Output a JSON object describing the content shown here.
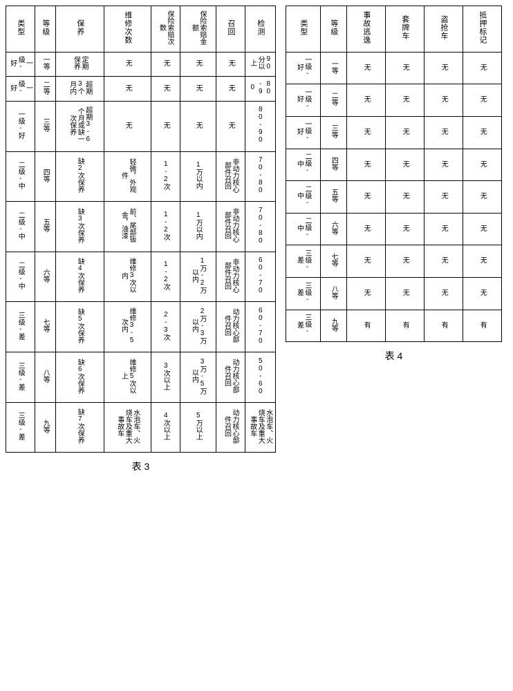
{
  "table3": {
    "caption": "表 3",
    "headers": [
      "类型",
      "等级",
      "保养",
      "维修次数",
      "保险索赔次数",
      "保险索赔金额",
      "召回",
      "检测"
    ],
    "rows": [
      {
        "short": true,
        "cells": [
          "一级-好",
          "一等",
          "定期保养",
          "无",
          "无",
          "无",
          "无",
          "90分以上"
        ]
      },
      {
        "short": true,
        "cells": [
          "一级-好",
          "二等",
          "超期3个月内",
          "无",
          "无",
          "无",
          "无",
          "80-90"
        ]
      },
      {
        "short": false,
        "cells": [
          "一级-好",
          "三等",
          "超期3-6个月或缺一次保养",
          "无",
          "无",
          "无",
          "无",
          "80-90"
        ]
      },
      {
        "short": false,
        "cells": [
          "二级-中",
          "四等",
          "缺2次保养",
          "轻微，外观件",
          "1-2次",
          "1万以内",
          "非动力核心部件召回",
          "70-80"
        ]
      },
      {
        "short": false,
        "cells": [
          "二级-中",
          "五等",
          "缺3次保养",
          "前、尾部钣金，油漆",
          "1-2次",
          "1万以内",
          "非动力核心部件召回",
          "70-80"
        ]
      },
      {
        "short": false,
        "cells": [
          "二级-中",
          "六等",
          "缺4次保养",
          "维修3次以内",
          "1-2次",
          "1万-2万以内",
          "非动力核心部件召回",
          "60-70"
        ]
      },
      {
        "short": false,
        "cells": [
          "三级-差",
          "七等",
          "缺5次保养",
          "维修3-5次内",
          "2-3次",
          "2万-3万以内",
          "动力核心部件召回",
          "60-70"
        ]
      },
      {
        "short": false,
        "cells": [
          "三级-差",
          "八等",
          "缺6次保养",
          "维修5次以上",
          "3次以上",
          "3万-5万以内",
          "动力核心部件召回",
          "50-60"
        ]
      },
      {
        "short": false,
        "cells": [
          "三级-差",
          "九等",
          "缺7次保养",
          "水泡车、火烧车及重大事故车",
          "4次以上",
          "5万以上",
          "动力核心部件召回",
          "水泡车、火烧车及重大事故车"
        ]
      }
    ]
  },
  "table4": {
    "caption": "表 4",
    "headers": [
      "类型",
      "等级",
      "事故逃逸",
      "套牌车",
      "盗抢车",
      "抵押标记"
    ],
    "rows": [
      [
        "一级-好",
        "一等",
        "无",
        "无",
        "无",
        "无"
      ],
      [
        "一级-好",
        "二等",
        "无",
        "无",
        "无",
        "无"
      ],
      [
        "一级-好",
        "三等",
        "无",
        "无",
        "无",
        "无"
      ],
      [
        "二级-中",
        "四等",
        "无",
        "无",
        "无",
        "无"
      ],
      [
        "二级-中",
        "五等",
        "无",
        "无",
        "无",
        "无"
      ],
      [
        "二级-中",
        "六等",
        "无",
        "无",
        "无",
        "无"
      ],
      [
        "三级-差",
        "七等",
        "无",
        "无",
        "无",
        "无"
      ],
      [
        "三级-差",
        "八等",
        "无",
        "无",
        "无",
        "无"
      ],
      [
        "三级-差",
        "九等",
        "有",
        "有",
        "有",
        "有"
      ]
    ]
  }
}
